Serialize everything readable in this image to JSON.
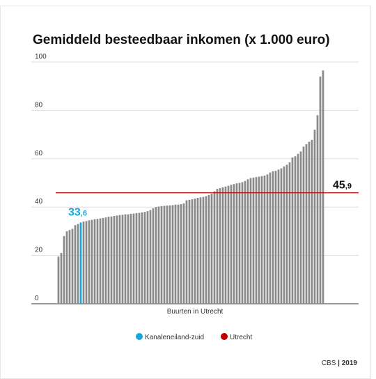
{
  "chart_data": {
    "type": "bar",
    "title": "Gemiddeld besteedbaar inkomen (x 1.000 euro)",
    "x_label": "Buurten in Utrecht",
    "source": "CBS | 2019",
    "color": "#8a8a8a",
    "highlight_color": "#13a8dc",
    "categories": [
      null,
      null,
      null,
      null,
      null,
      null,
      null,
      null,
      "Kanaleneiland-zuid",
      null,
      null,
      null,
      null,
      null,
      null,
      null,
      null,
      null,
      null,
      null,
      null,
      null,
      null,
      null,
      null,
      null,
      null,
      null,
      null,
      null,
      null,
      null,
      null,
      null,
      null,
      null,
      null,
      null,
      null,
      null,
      null,
      null,
      null,
      null,
      null,
      null,
      null,
      null,
      null,
      null,
      null,
      null,
      null,
      null,
      null,
      null,
      null,
      null,
      null,
      null,
      null,
      null,
      null,
      null,
      null,
      null,
      null,
      null,
      null,
      null,
      null,
      null,
      null,
      null,
      null,
      null,
      null,
      null,
      null,
      null,
      null,
      null,
      null,
      null,
      null,
      null,
      null,
      null,
      null,
      null,
      null,
      null,
      null,
      null,
      null,
      null
    ],
    "values": [
      19.5,
      21,
      28,
      30,
      30.5,
      31,
      32.5,
      33,
      33.6,
      34,
      34.2,
      34.5,
      34.7,
      35,
      35.1,
      35.3,
      35.5,
      35.7,
      36,
      36.1,
      36.3,
      36.5,
      36.7,
      36.8,
      37,
      37,
      37.2,
      37.3,
      37.5,
      37.6,
      37.8,
      38,
      38.3,
      38.8,
      39.5,
      40,
      40.2,
      40.4,
      40.5,
      40.6,
      40.7,
      40.8,
      41,
      41,
      41.2,
      41.5,
      42.8,
      43,
      43.2,
      43.5,
      43.8,
      44,
      44.2,
      44.5,
      45,
      45.5,
      46.5,
      47.5,
      47.8,
      48.2,
      48.5,
      48.8,
      49.2,
      49.5,
      49.8,
      50,
      50.3,
      50.8,
      51.5,
      52,
      52.2,
      52.4,
      52.6,
      52.8,
      53,
      53.5,
      54.3,
      54.8,
      55,
      55.5,
      56,
      56.8,
      57.5,
      58.5,
      60.5,
      61,
      62,
      63,
      65,
      66,
      67,
      67.8,
      72,
      78,
      94,
      96.5
    ],
    "value_labels": [
      null,
      null,
      null,
      null,
      null,
      null,
      null,
      null,
      "33,6",
      null,
      null,
      null,
      null,
      null,
      null,
      null,
      null,
      null,
      null,
      null,
      null,
      null,
      null,
      null,
      null,
      null,
      null,
      null,
      null,
      null,
      null,
      null,
      null,
      null,
      null,
      null,
      null,
      null,
      null,
      null,
      null,
      null,
      null,
      null,
      null,
      null,
      null,
      null,
      null,
      null,
      null,
      null,
      null,
      null,
      null,
      null,
      null,
      null,
      null,
      null,
      null,
      null,
      null,
      null,
      null,
      null,
      null,
      null,
      null,
      null,
      null,
      null,
      null,
      null,
      null,
      null,
      null,
      null,
      null,
      null,
      null,
      null,
      null,
      null,
      null,
      null,
      null,
      null,
      null,
      null,
      null,
      null,
      null,
      null,
      null,
      null
    ],
    "reference": {
      "name": "Utrecht",
      "value": 45.9,
      "label": "45,9",
      "color": "#c00000"
    },
    "ylim": [
      0,
      100
    ],
    "yticks": [
      0,
      20,
      40,
      60,
      80,
      100
    ],
    "grid": true
  }
}
